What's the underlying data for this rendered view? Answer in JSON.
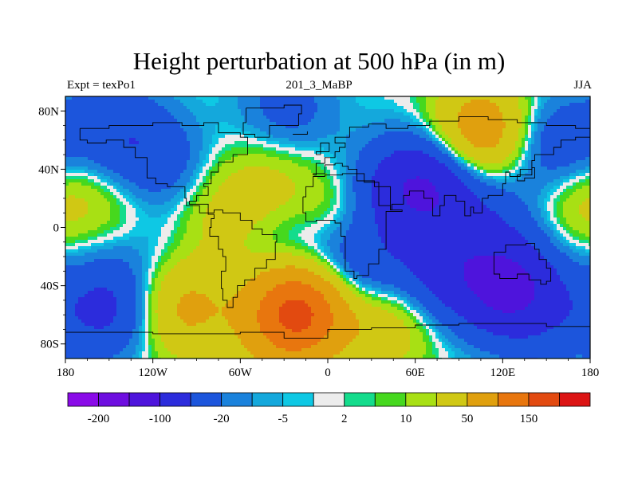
{
  "header": {
    "title": "Height perturbation at 500 hPa (in m)",
    "left_label": "Expt = texPo1",
    "center_label": "201_3_MaBP",
    "right_label": "JJA"
  },
  "chart_data": {
    "type": "heatmap",
    "title": "Height perturbation at 500 hPa (in m)",
    "subtitle_left": "Expt = texPo1",
    "subtitle_center": "201_3_MaBP",
    "subtitle_right": "JJA",
    "xlim": [
      -180,
      180
    ],
    "ylim": [
      -90,
      90
    ],
    "x_ticks": [
      {
        "value": -180,
        "label": "180"
      },
      {
        "value": -120,
        "label": "120W"
      },
      {
        "value": -60,
        "label": "60W"
      },
      {
        "value": 0,
        "label": "0"
      },
      {
        "value": 60,
        "label": "60E"
      },
      {
        "value": 120,
        "label": "120E"
      },
      {
        "value": 180,
        "label": "180"
      }
    ],
    "y_ticks": [
      {
        "value": 80,
        "label": "80N"
      },
      {
        "value": 40,
        "label": "40N"
      },
      {
        "value": 0,
        "label": "0"
      },
      {
        "value": -40,
        "label": "40S"
      },
      {
        "value": -80,
        "label": "80S"
      }
    ],
    "contour_levels": [
      -200,
      -150,
      -100,
      -50,
      -20,
      -10,
      -5,
      -2,
      2,
      5,
      10,
      20,
      50,
      100,
      150,
      200
    ],
    "colorbar_colors": [
      "#8a0ae8",
      "#6e0ee0",
      "#4e14dc",
      "#2c2cdc",
      "#1c55dc",
      "#1a82dc",
      "#14a8dc",
      "#0ec8e4",
      "#ececec",
      "#14dc8c",
      "#46d81e",
      "#a8e014",
      "#d0c814",
      "#e0a00e",
      "#e8760e",
      "#e24a10",
      "#dc1414"
    ],
    "colorbar_labels": [
      {
        "level": -200,
        "label": "-200"
      },
      {
        "level": -100,
        "label": "-100"
      },
      {
        "level": -20,
        "label": "-20"
      },
      {
        "level": -5,
        "label": "-5"
      },
      {
        "level": 2,
        "label": "2"
      },
      {
        "level": 10,
        "label": "10"
      },
      {
        "level": 50,
        "label": "50"
      },
      {
        "level": 150,
        "label": "150"
      }
    ],
    "field_anomalies": [
      {
        "lon": -148,
        "lat": 68,
        "value": -35
      },
      {
        "lon": -120,
        "lat": 42,
        "value": -45
      },
      {
        "lon": -28,
        "lat": 80,
        "value": -30
      },
      {
        "lon": 70,
        "lat": 30,
        "value": -85
      },
      {
        "lon": 40,
        "lat": 22,
        "value": -45
      },
      {
        "lon": 155,
        "lat": 55,
        "value": -45
      },
      {
        "lon": 110,
        "lat": 8,
        "value": -30
      },
      {
        "lon": -120,
        "lat": -8,
        "value": -15
      },
      {
        "lon": -20,
        "lat": -22,
        "value": -35
      },
      {
        "lon": 20,
        "lat": -28,
        "value": -50
      },
      {
        "lon": 80,
        "lat": -30,
        "value": -60
      },
      {
        "lon": 125,
        "lat": -42,
        "value": -110
      },
      {
        "lon": -150,
        "lat": -55,
        "value": -60
      },
      {
        "lon": 160,
        "lat": -65,
        "value": -20
      },
      {
        "lon": 105,
        "lat": 65,
        "value": 85
      },
      {
        "lon": -135,
        "lat": 20,
        "value": 25
      },
      {
        "lon": -75,
        "lat": 8,
        "value": 25
      },
      {
        "lon": -40,
        "lat": 32,
        "value": 25
      },
      {
        "lon": 10,
        "lat": 8,
        "value": 30
      },
      {
        "lon": 175,
        "lat": 20,
        "value": 30
      },
      {
        "lon": -20,
        "lat": -55,
        "value": 170
      },
      {
        "lon": -100,
        "lat": -55,
        "value": 60
      },
      {
        "lon": 40,
        "lat": -65,
        "value": 40
      },
      {
        "lon": -35,
        "lat": -80,
        "value": 25
      }
    ]
  }
}
